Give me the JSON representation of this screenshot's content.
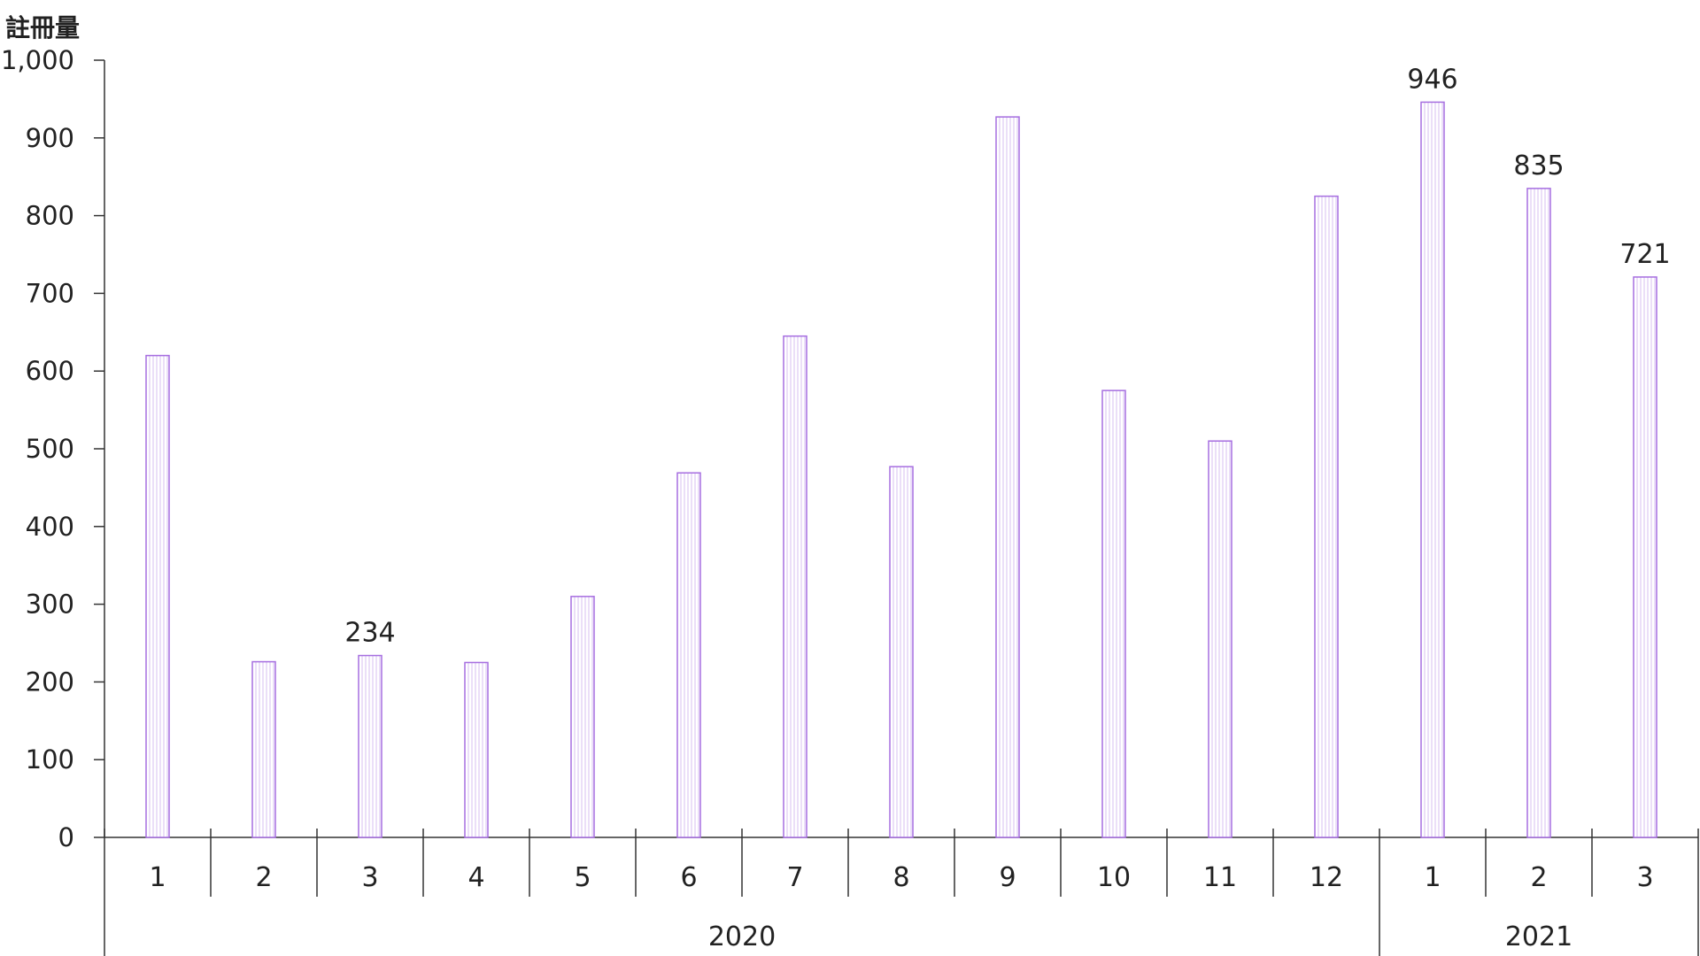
{
  "chart_data": {
    "type": "bar",
    "ylabel": "註冊量",
    "ylim": [
      0,
      1000
    ],
    "yticks": [
      0,
      100,
      200,
      300,
      400,
      500,
      600,
      700,
      800,
      900,
      1000
    ],
    "ytick_labels": [
      "0",
      "100",
      "200",
      "300",
      "400",
      "500",
      "600",
      "700",
      "800",
      "900",
      "1,000"
    ],
    "categories": [
      "1",
      "2",
      "3",
      "4",
      "5",
      "6",
      "7",
      "8",
      "9",
      "10",
      "11",
      "12",
      "1",
      "2",
      "3"
    ],
    "groups": [
      {
        "label": "2020",
        "count": 12
      },
      {
        "label": "2021",
        "count": 3
      }
    ],
    "values": [
      620,
      226,
      234,
      225,
      310,
      469,
      645,
      477,
      927,
      575,
      510,
      825,
      946,
      835,
      721
    ],
    "data_labels": [
      {
        "index": 2,
        "text": "234"
      },
      {
        "index": 12,
        "text": "946"
      },
      {
        "index": 13,
        "text": "835"
      },
      {
        "index": 14,
        "text": "721"
      }
    ],
    "bar_color": "#a66ee0",
    "bar_fill": "#f7f0fd",
    "grid": false,
    "legend": "none"
  }
}
